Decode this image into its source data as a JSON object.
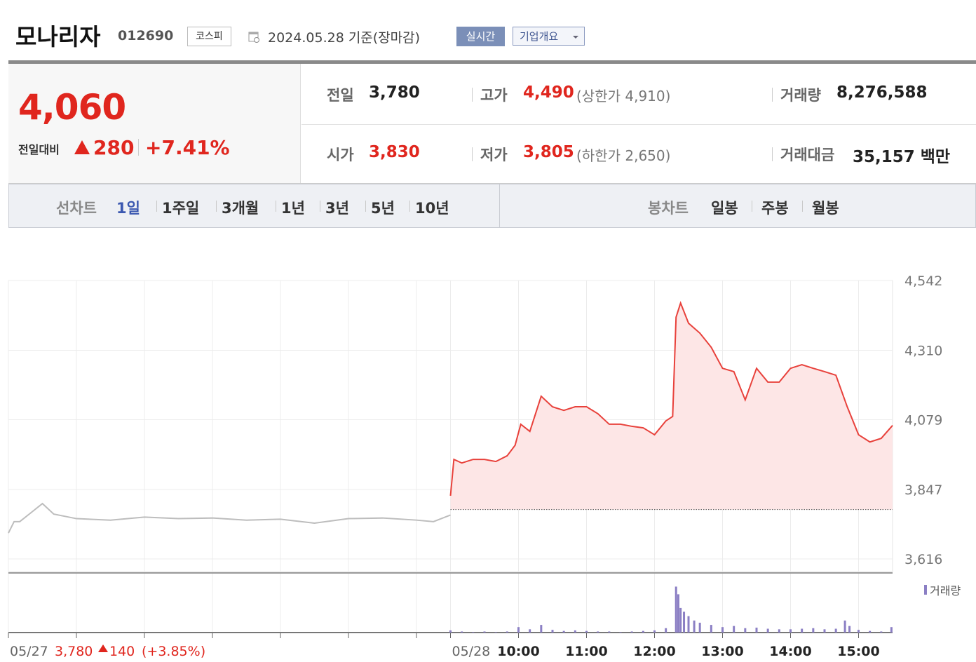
{
  "header": {
    "name": "모나리자",
    "code": "012690",
    "market": "코스피",
    "date": "2024.05.28 기준(장마감)",
    "buttons": [
      "실시간",
      "기업개요"
    ]
  },
  "quote": {
    "price": "4,060",
    "change_label": "전일대비",
    "change": "280",
    "rate": "+7.41%",
    "stats": [
      {
        "label": "전일",
        "value": "3,780"
      },
      {
        "label": "고가",
        "value": "4,490",
        "extra": "(상한가 4,910)"
      },
      {
        "label": "거래량",
        "value": "8,276,588"
      },
      {
        "label": "시가",
        "value": "3,830"
      },
      {
        "label": "저가",
        "value": "3,805",
        "extra": "(하한가 2,650)"
      },
      {
        "label": "거래대금",
        "value": "35,157 백만"
      }
    ]
  },
  "tabs": {
    "line_label": "선차트",
    "line": [
      "1일",
      "1주일",
      "3개월",
      "1년",
      "3년",
      "5년",
      "10년"
    ],
    "candle_label": "봉차트",
    "candle": [
      "일봉",
      "주봉",
      "월봉"
    ]
  },
  "chart_data": {
    "type": "line",
    "xlim": [
      0,
      780
    ],
    "ylim": [
      3574,
      4542
    ],
    "yticks": [
      {
        "value": 3616,
        "label": "3,616"
      },
      {
        "value": 3847,
        "label": "3,847"
      },
      {
        "value": 4079,
        "label": "4,079"
      },
      {
        "value": 4310,
        "label": "4,310"
      },
      {
        "value": 4542,
        "label": "4,542"
      }
    ],
    "xticks": [
      {
        "value": 0,
        "label": "05/27"
      },
      {
        "value": 60,
        "label": null
      },
      {
        "value": 120,
        "label": null
      },
      {
        "value": 180,
        "label": null
      },
      {
        "value": 240,
        "label": null
      },
      {
        "value": 300,
        "label": null
      },
      {
        "value": 360,
        "label": null
      },
      {
        "value": 390,
        "label": "05/28"
      },
      {
        "value": 450,
        "label": "10:00"
      },
      {
        "value": 510,
        "label": "11:00"
      },
      {
        "value": 570,
        "label": "12:00"
      },
      {
        "value": 630,
        "label": "13:00"
      },
      {
        "value": 690,
        "label": "14:00"
      },
      {
        "value": 750,
        "label": "15:00"
      }
    ],
    "grid": true,
    "baseline": 3780,
    "series": [
      {
        "color": "#bdbdbd",
        "fill": null,
        "x": [
          0,
          5,
          10,
          20,
          30,
          40,
          60,
          90,
          120,
          150,
          180,
          210,
          240,
          270,
          300,
          330,
          360,
          375,
          390
        ],
        "values": [
          3702,
          3740,
          3740,
          3770,
          3800,
          3765,
          3750,
          3745,
          3755,
          3750,
          3752,
          3745,
          3748,
          3735,
          3750,
          3752,
          3745,
          3740,
          3762
        ]
      },
      {
        "color": "#e8413b",
        "fill": "#fde6e6",
        "x": [
          390,
          393,
          400,
          410,
          420,
          430,
          440,
          447,
          452,
          460,
          470,
          480,
          490,
          500,
          510,
          520,
          530,
          540,
          550,
          560,
          570,
          580,
          586,
          589,
          593,
          600,
          610,
          620,
          630,
          640,
          650,
          660,
          670,
          680,
          690,
          700,
          710,
          720,
          730,
          740,
          750,
          760,
          770,
          780
        ],
        "values": [
          3826,
          3947,
          3935,
          3947,
          3947,
          3940,
          3959,
          3994,
          4064,
          4040,
          4157,
          4122,
          4110,
          4122,
          4122,
          4099,
          4064,
          4064,
          4057,
          4052,
          4029,
          4075,
          4090,
          4420,
          4467,
          4400,
          4367,
          4320,
          4250,
          4239,
          4145,
          4250,
          4204,
          4204,
          4250,
          4262,
          4250,
          4239,
          4227,
          4122,
          4029,
          4005,
          4017,
          4060
        ]
      }
    ],
    "volume": {
      "name": "거래량",
      "color": "#8b7fc4",
      "ylim": [
        0,
        100
      ],
      "x": [
        390,
        400,
        410,
        420,
        430,
        440,
        450,
        460,
        470,
        480,
        490,
        500,
        510,
        520,
        530,
        540,
        550,
        560,
        570,
        580,
        589,
        591,
        593,
        596,
        600,
        605,
        610,
        620,
        630,
        640,
        650,
        660,
        670,
        680,
        690,
        700,
        710,
        720,
        730,
        738,
        742,
        750,
        760,
        770,
        779
      ],
      "values": [
        4,
        2,
        1,
        2,
        1,
        2,
        10,
        6,
        14,
        5,
        3,
        4,
        3,
        2,
        2,
        1,
        2,
        3,
        4,
        8,
        84,
        70,
        45,
        38,
        30,
        22,
        18,
        14,
        10,
        12,
        8,
        9,
        7,
        6,
        6,
        7,
        8,
        6,
        7,
        22,
        12,
        5,
        3,
        2,
        10
      ]
    },
    "prev_info": {
      "close": "3,780",
      "change": "140",
      "rate": "(+3.85%)"
    }
  }
}
